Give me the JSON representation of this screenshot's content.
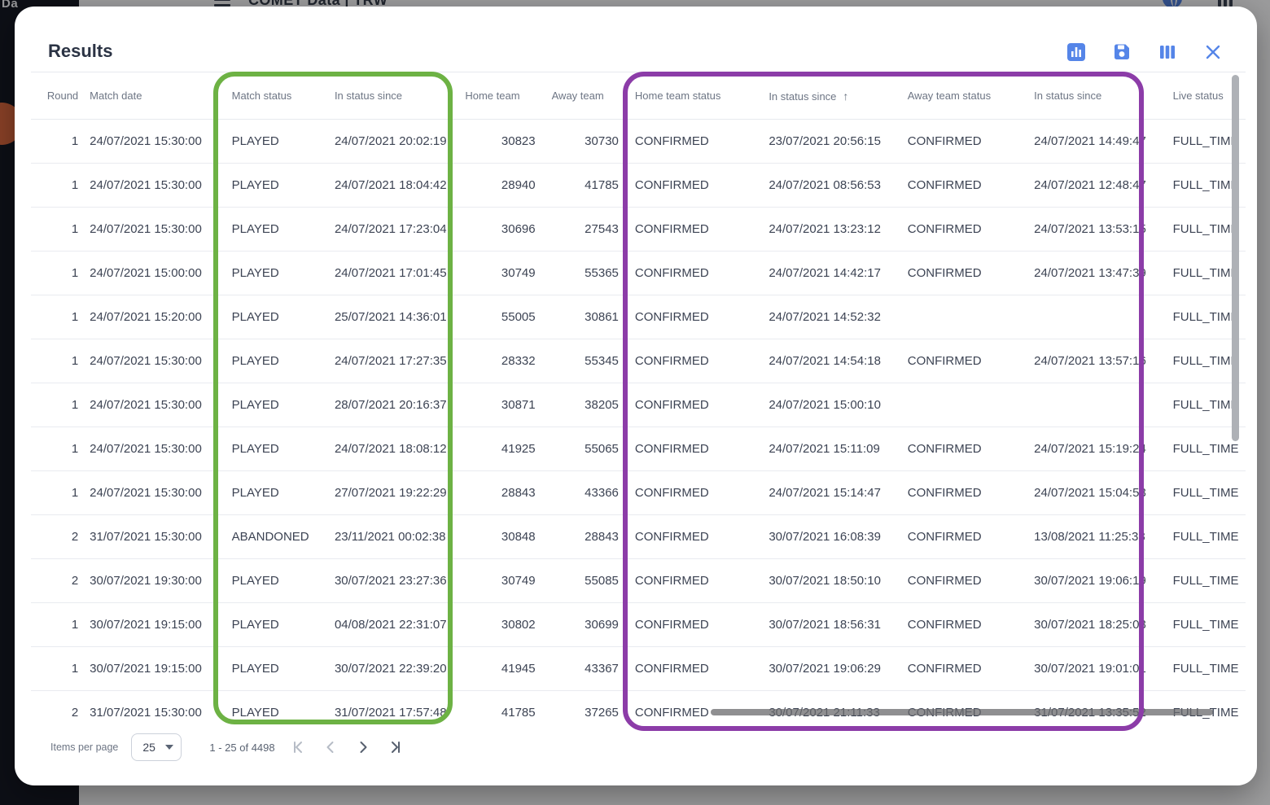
{
  "background": {
    "topbar": {
      "title": "COMET Data | TRW"
    },
    "sidebar": {
      "logo_fragment": "Da"
    }
  },
  "dialog": {
    "title": "Results",
    "toolbar": {
      "icons": [
        "bar-chart-icon",
        "save-icon",
        "columns-icon",
        "close-icon"
      ],
      "accent_color": "#5585e8"
    }
  },
  "table": {
    "columns": [
      {
        "key": "round",
        "label": "Round"
      },
      {
        "key": "match_date",
        "label": "Match date"
      },
      {
        "key": "match_status",
        "label": "Match status"
      },
      {
        "key": "in_status_since",
        "label": "In status since"
      },
      {
        "key": "home_team",
        "label": "Home team"
      },
      {
        "key": "away_team",
        "label": "Away team"
      },
      {
        "key": "home_team_status",
        "label": "Home team status"
      },
      {
        "key": "home_in_status_since",
        "label": "In status since",
        "sort": "asc"
      },
      {
        "key": "away_team_status",
        "label": "Away team status"
      },
      {
        "key": "away_in_status_since",
        "label": "In status since"
      },
      {
        "key": "live_status",
        "label": "Live status"
      }
    ],
    "rows": [
      [
        "1",
        "24/07/2021 15:30:00",
        "PLAYED",
        "24/07/2021 20:02:19",
        "30823",
        "30730",
        "CONFIRMED",
        "23/07/2021 20:56:15",
        "CONFIRMED",
        "24/07/2021 14:49:47",
        "FULL_TIME"
      ],
      [
        "1",
        "24/07/2021 15:30:00",
        "PLAYED",
        "24/07/2021 18:04:42",
        "28940",
        "41785",
        "CONFIRMED",
        "24/07/2021 08:56:53",
        "CONFIRMED",
        "24/07/2021 12:48:47",
        "FULL_TIME"
      ],
      [
        "1",
        "24/07/2021 15:30:00",
        "PLAYED",
        "24/07/2021 17:23:04",
        "30696",
        "27543",
        "CONFIRMED",
        "24/07/2021 13:23:12",
        "CONFIRMED",
        "24/07/2021 13:53:15",
        "FULL_TIME"
      ],
      [
        "1",
        "24/07/2021 15:00:00",
        "PLAYED",
        "24/07/2021 17:01:45",
        "30749",
        "55365",
        "CONFIRMED",
        "24/07/2021 14:42:17",
        "CONFIRMED",
        "24/07/2021 13:47:39",
        "FULL_TIME"
      ],
      [
        "1",
        "24/07/2021 15:20:00",
        "PLAYED",
        "25/07/2021 14:36:01",
        "55005",
        "30861",
        "CONFIRMED",
        "24/07/2021 14:52:32",
        "",
        "",
        "FULL_TIME"
      ],
      [
        "1",
        "24/07/2021 15:30:00",
        "PLAYED",
        "24/07/2021 17:27:35",
        "28332",
        "55345",
        "CONFIRMED",
        "24/07/2021 14:54:18",
        "CONFIRMED",
        "24/07/2021 13:57:16",
        "FULL_TIME"
      ],
      [
        "1",
        "24/07/2021 15:30:00",
        "PLAYED",
        "28/07/2021 20:16:37",
        "30871",
        "38205",
        "CONFIRMED",
        "24/07/2021 15:00:10",
        "",
        "",
        "FULL_TIME"
      ],
      [
        "1",
        "24/07/2021 15:30:00",
        "PLAYED",
        "24/07/2021 18:08:12",
        "41925",
        "55065",
        "CONFIRMED",
        "24/07/2021 15:11:09",
        "CONFIRMED",
        "24/07/2021 15:19:24",
        "FULL_TIME"
      ],
      [
        "1",
        "24/07/2021 15:30:00",
        "PLAYED",
        "27/07/2021 19:22:29",
        "28843",
        "43366",
        "CONFIRMED",
        "24/07/2021 15:14:47",
        "CONFIRMED",
        "24/07/2021 15:04:53",
        "FULL_TIME"
      ],
      [
        "2",
        "31/07/2021 15:30:00",
        "ABANDONED",
        "23/11/2021 00:02:38",
        "30848",
        "28843",
        "CONFIRMED",
        "30/07/2021 16:08:39",
        "CONFIRMED",
        "13/08/2021 11:25:38",
        "FULL_TIME"
      ],
      [
        "2",
        "30/07/2021 19:30:00",
        "PLAYED",
        "30/07/2021 23:27:36",
        "30749",
        "55085",
        "CONFIRMED",
        "30/07/2021 18:50:10",
        "CONFIRMED",
        "30/07/2021 19:06:19",
        "FULL_TIME"
      ],
      [
        "1",
        "30/07/2021 19:15:00",
        "PLAYED",
        "04/08/2021 22:31:07",
        "30802",
        "30699",
        "CONFIRMED",
        "30/07/2021 18:56:31",
        "CONFIRMED",
        "30/07/2021 18:25:03",
        "FULL_TIME"
      ],
      [
        "1",
        "30/07/2021 19:15:00",
        "PLAYED",
        "30/07/2021 22:39:20",
        "41945",
        "43367",
        "CONFIRMED",
        "30/07/2021 19:06:29",
        "CONFIRMED",
        "30/07/2021 19:01:01",
        "FULL_TIME"
      ],
      [
        "2",
        "31/07/2021 15:30:00",
        "PLAYED",
        "31/07/2021 17:57:48",
        "41785",
        "37265",
        "CONFIRMED",
        "30/07/2021 21:11:33",
        "CONFIRMED",
        "31/07/2021 13:35:52",
        "FULL_TIME"
      ]
    ],
    "sort_arrow": "↑"
  },
  "highlights": {
    "green": "#6db244",
    "purple": "#8c3ca8"
  },
  "paginator": {
    "items_per_page_label": "Items per page",
    "page_size": "25",
    "range_label": "1 - 25 of 4498",
    "first_disabled": true,
    "prev_disabled": true,
    "next_disabled": false,
    "last_disabled": false
  }
}
